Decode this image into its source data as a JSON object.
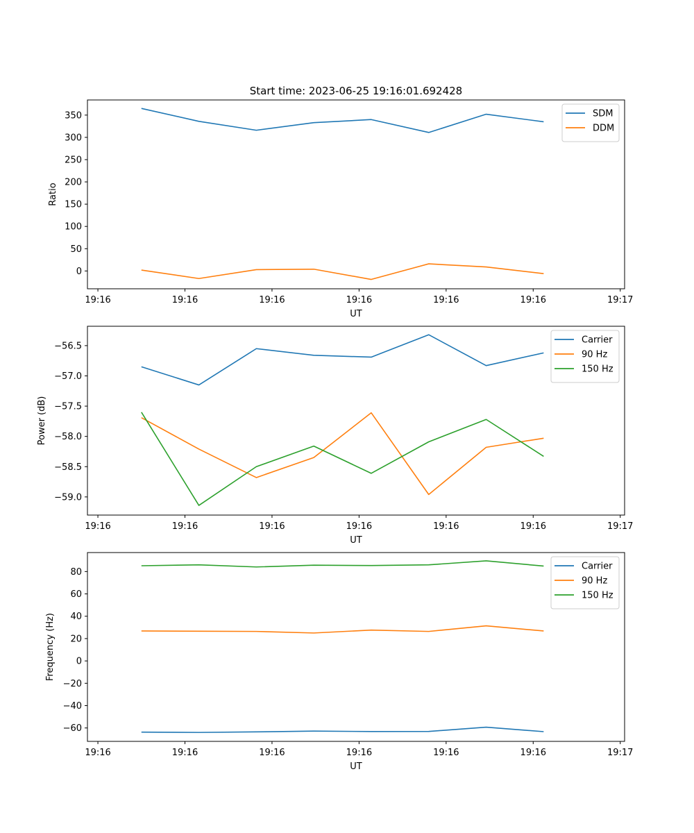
{
  "figure": {
    "title": "Start time: 2023-06-25 19:16:01.692428"
  },
  "chart_data": [
    {
      "type": "line",
      "title": "Start time: 2023-06-25 19:16:01.692428",
      "xlabel": "UT",
      "ylabel": "Ratio",
      "x": [
        0.5,
        1.16,
        1.82,
        2.48,
        3.14,
        3.8,
        4.46,
        5.12
      ],
      "xlim": [
        -0.12,
        6.05
      ],
      "xticks": [
        0,
        1,
        2,
        3,
        4,
        5,
        6
      ],
      "xticklabels": [
        "19:16",
        "19:16",
        "19:16",
        "19:16",
        "19:16",
        "19:16",
        "19:17"
      ],
      "ylim": [
        -40,
        384
      ],
      "yticks": [
        0,
        50,
        100,
        150,
        200,
        250,
        300,
        350
      ],
      "yticklabels": [
        "0",
        "50",
        "100",
        "150",
        "200",
        "250",
        "300",
        "350"
      ],
      "legend": "top-right",
      "grid": false,
      "series": [
        {
          "name": "SDM",
          "color": "#1f77b4",
          "values": [
            365,
            336,
            316,
            333,
            340,
            311,
            352,
            335
          ]
        },
        {
          "name": "DDM",
          "color": "#ff7f0e",
          "values": [
            2,
            -17,
            3,
            4,
            -19,
            16,
            9,
            -6
          ]
        }
      ]
    },
    {
      "type": "line",
      "title": "",
      "xlabel": "UT",
      "ylabel": "Power (dB)",
      "x": [
        0.5,
        1.16,
        1.82,
        2.48,
        3.14,
        3.8,
        4.46,
        5.12
      ],
      "xlim": [
        -0.12,
        6.05
      ],
      "xticks": [
        0,
        1,
        2,
        3,
        4,
        5,
        6
      ],
      "xticklabels": [
        "19:16",
        "19:16",
        "19:16",
        "19:16",
        "19:16",
        "19:16",
        "19:17"
      ],
      "ylim": [
        -59.3,
        -56.18
      ],
      "yticks": [
        -59.0,
        -58.5,
        -58.0,
        -57.5,
        -57.0,
        -56.5
      ],
      "yticklabels": [
        "−59.0",
        "−58.5",
        "−58.0",
        "−57.5",
        "−57.0",
        "−56.5"
      ],
      "legend": "top-right",
      "grid": false,
      "series": [
        {
          "name": "Carrier",
          "color": "#1f77b4",
          "values": [
            -56.85,
            -57.15,
            -56.55,
            -56.66,
            -56.69,
            -56.32,
            -56.83,
            -56.62
          ]
        },
        {
          "name": "90 Hz",
          "color": "#ff7f0e",
          "values": [
            -57.69,
            -58.21,
            -58.68,
            -58.35,
            -57.61,
            -58.96,
            -58.18,
            -58.03
          ]
        },
        {
          "name": "150 Hz",
          "color": "#2ca02c",
          "values": [
            -57.6,
            -59.14,
            -58.5,
            -58.16,
            -58.61,
            -58.09,
            -57.72,
            -58.33
          ]
        }
      ]
    },
    {
      "type": "line",
      "title": "",
      "xlabel": "UT",
      "ylabel": "Frequency (Hz)",
      "x": [
        0.5,
        1.16,
        1.82,
        2.48,
        3.14,
        3.8,
        4.46,
        5.12
      ],
      "xlim": [
        -0.12,
        6.05
      ],
      "xticks": [
        0,
        1,
        2,
        3,
        4,
        5,
        6
      ],
      "xticklabels": [
        "19:16",
        "19:16",
        "19:16",
        "19:16",
        "19:16",
        "19:16",
        "19:17"
      ],
      "ylim": [
        -72,
        97
      ],
      "yticks": [
        -60,
        -40,
        -20,
        0,
        20,
        40,
        60,
        80
      ],
      "yticklabels": [
        "−60",
        "−40",
        "−20",
        "0",
        "20",
        "40",
        "60",
        "80"
      ],
      "legend": "top-right",
      "grid": false,
      "series": [
        {
          "name": "Carrier",
          "color": "#1f77b4",
          "values": [
            -63.7,
            -64.0,
            -63.5,
            -62.8,
            -63.2,
            -63.1,
            -59.3,
            -63.3
          ]
        },
        {
          "name": "90 Hz",
          "color": "#ff7f0e",
          "values": [
            26.8,
            26.6,
            26.4,
            25.0,
            27.6,
            26.4,
            31.4,
            26.8
          ]
        },
        {
          "name": "150 Hz",
          "color": "#2ca02c",
          "values": [
            85.2,
            86.0,
            84.1,
            85.7,
            85.4,
            86.0,
            89.6,
            84.9
          ]
        }
      ]
    }
  ]
}
